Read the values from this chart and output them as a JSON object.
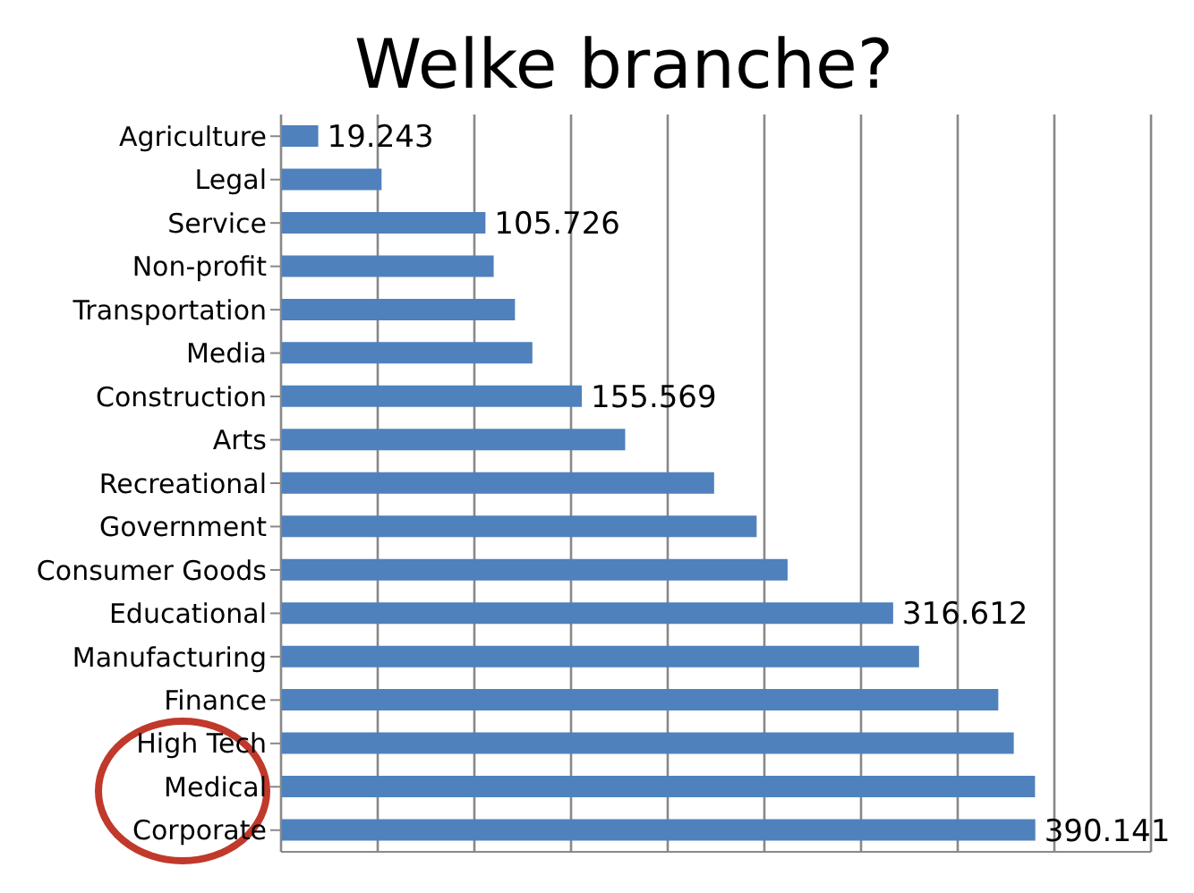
{
  "chart_data": {
    "type": "bar",
    "orientation": "horizontal",
    "title": "Welke branche?",
    "categories": [
      "Agriculture",
      "Legal",
      "Service",
      "Non-profit",
      "Transportation",
      "Media",
      "Construction",
      "Arts",
      "Recreational",
      "Government",
      "Consumer Goods",
      "Educational",
      "Manufacturing",
      "Finance",
      "High Tech",
      "Medical",
      "Corporate"
    ],
    "values": [
      19.243,
      52,
      105.726,
      110,
      121,
      130,
      155.569,
      178,
      224,
      246,
      262,
      316.612,
      330,
      371,
      379,
      390,
      390.141
    ],
    "value_labels": [
      "19.243",
      null,
      "105.726",
      null,
      null,
      null,
      "155.569",
      null,
      null,
      null,
      null,
      "316.612",
      null,
      null,
      null,
      null,
      "390.141"
    ],
    "color": "#4f81bd",
    "xlim": [
      0,
      450
    ],
    "xticks": [
      {
        "value": 0,
        "label": null
      },
      {
        "value": 50,
        "label": null
      },
      {
        "value": 100,
        "label": null
      },
      {
        "value": 150,
        "label": null
      },
      {
        "value": 200,
        "label": null
      },
      {
        "value": 250,
        "label": null
      },
      {
        "value": 300,
        "label": null
      },
      {
        "value": 350,
        "label": null
      },
      {
        "value": 400,
        "label": null
      },
      {
        "value": 450,
        "label": null
      }
    ],
    "grid": "x",
    "tick_labels": "y"
  }
}
